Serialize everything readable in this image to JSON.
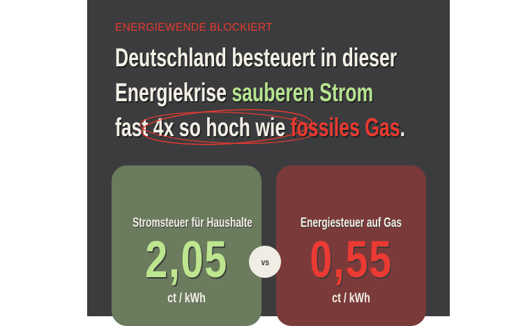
{
  "kicker": "ENERGIEWENDE BLOCKIERT",
  "headline": {
    "line1": "Deutschland besteuert in dieser",
    "line2_a": "Energiekrise ",
    "line2_b": "sauberen Strom",
    "line3_a": "fast 4x so hoch wie ",
    "line3_b": "fossiles Gas",
    "line3_c": "."
  },
  "cards": [
    {
      "label": "Stromsteuer für Haushalte",
      "value": "2,05",
      "unit": "ct / kWh",
      "color": "#6b7b5e",
      "value_color": "#bde68f"
    },
    {
      "label": "Energiesteuer auf Gas",
      "value": "0,55",
      "unit": "ct / kWh",
      "color": "#7b3a3a",
      "value_color": "#eb3a33"
    }
  ],
  "vs_label": "vs",
  "colors": {
    "panel": "#3c3c3e",
    "accent_red": "#e53a30",
    "accent_green": "#b6e38f",
    "text": "#f2efe6"
  }
}
